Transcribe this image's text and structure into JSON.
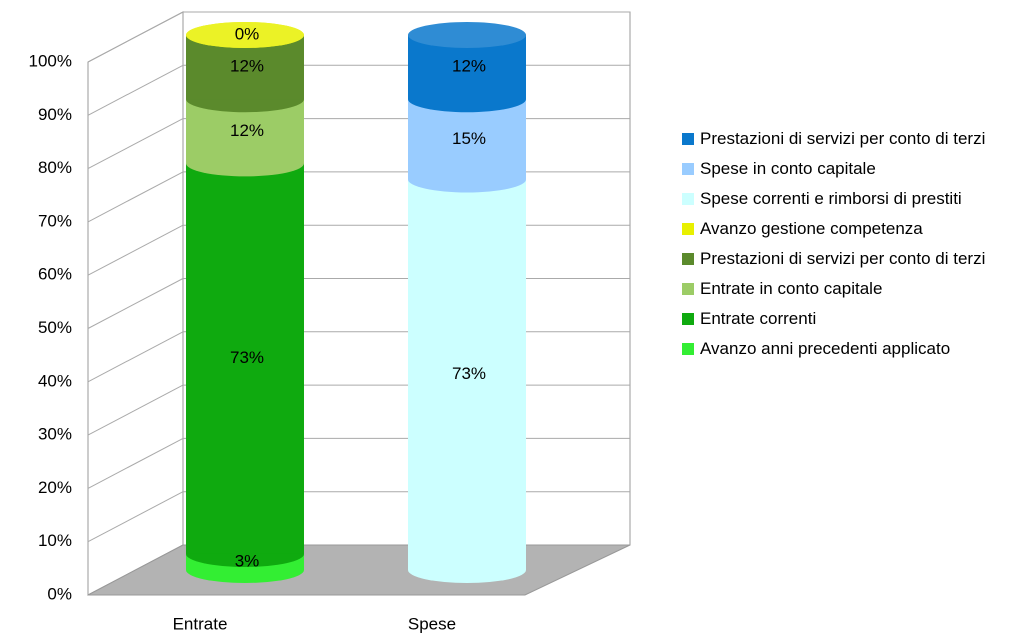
{
  "chart_data": {
    "type": "stacked_cylinder",
    "categories": [
      "Entrate",
      "Spese"
    ],
    "ylim": [
      0,
      100
    ],
    "yticks": [
      {
        "value": 0,
        "label": "0%"
      },
      {
        "value": 10,
        "label": "10%"
      },
      {
        "value": 20,
        "label": "20%"
      },
      {
        "value": 30,
        "label": "30%"
      },
      {
        "value": 40,
        "label": "40%"
      },
      {
        "value": 50,
        "label": "50%"
      },
      {
        "value": 60,
        "label": "60%"
      },
      {
        "value": 70,
        "label": "70%"
      },
      {
        "value": 80,
        "label": "80%"
      },
      {
        "value": 90,
        "label": "90%"
      },
      {
        "value": 100,
        "label": "100%"
      }
    ],
    "grid": true,
    "legend": "right",
    "series": [
      {
        "name": "Avanzo anni precedenti applicato",
        "color": "#33ee33",
        "values": [
          3,
          null
        ],
        "value_labels": [
          "3%",
          null
        ]
      },
      {
        "name": "Entrate correnti",
        "color": "#0faa0f",
        "values": [
          73,
          null
        ],
        "value_labels": [
          "73%",
          null
        ]
      },
      {
        "name": "Entrate in conto capitale",
        "color": "#9ccc66",
        "values": [
          12,
          null
        ],
        "value_labels": [
          "12%",
          null
        ]
      },
      {
        "name": "Prestazioni di servizi per conto di terzi",
        "color": "#5b8a2c",
        "values": [
          12,
          null
        ],
        "value_labels": [
          "12%",
          null
        ]
      },
      {
        "name": "Avanzo gestione competenza",
        "color": "#e8f000",
        "values": [
          0,
          null
        ],
        "value_labels": [
          "0%",
          null
        ]
      },
      {
        "name": "Spese correnti e rimborsi di prestiti",
        "color": "#ccffff",
        "values": [
          null,
          73
        ],
        "value_labels": [
          null,
          "73%"
        ]
      },
      {
        "name": "Spese in conto capitale",
        "color": "#99ccff",
        "values": [
          null,
          15
        ],
        "value_labels": [
          null,
          "15%"
        ]
      },
      {
        "name": "Prestazioni di servizi per conto di terzi",
        "color": "#0a78cc",
        "values": [
          null,
          12
        ],
        "value_labels": [
          null,
          "12%"
        ]
      }
    ]
  }
}
